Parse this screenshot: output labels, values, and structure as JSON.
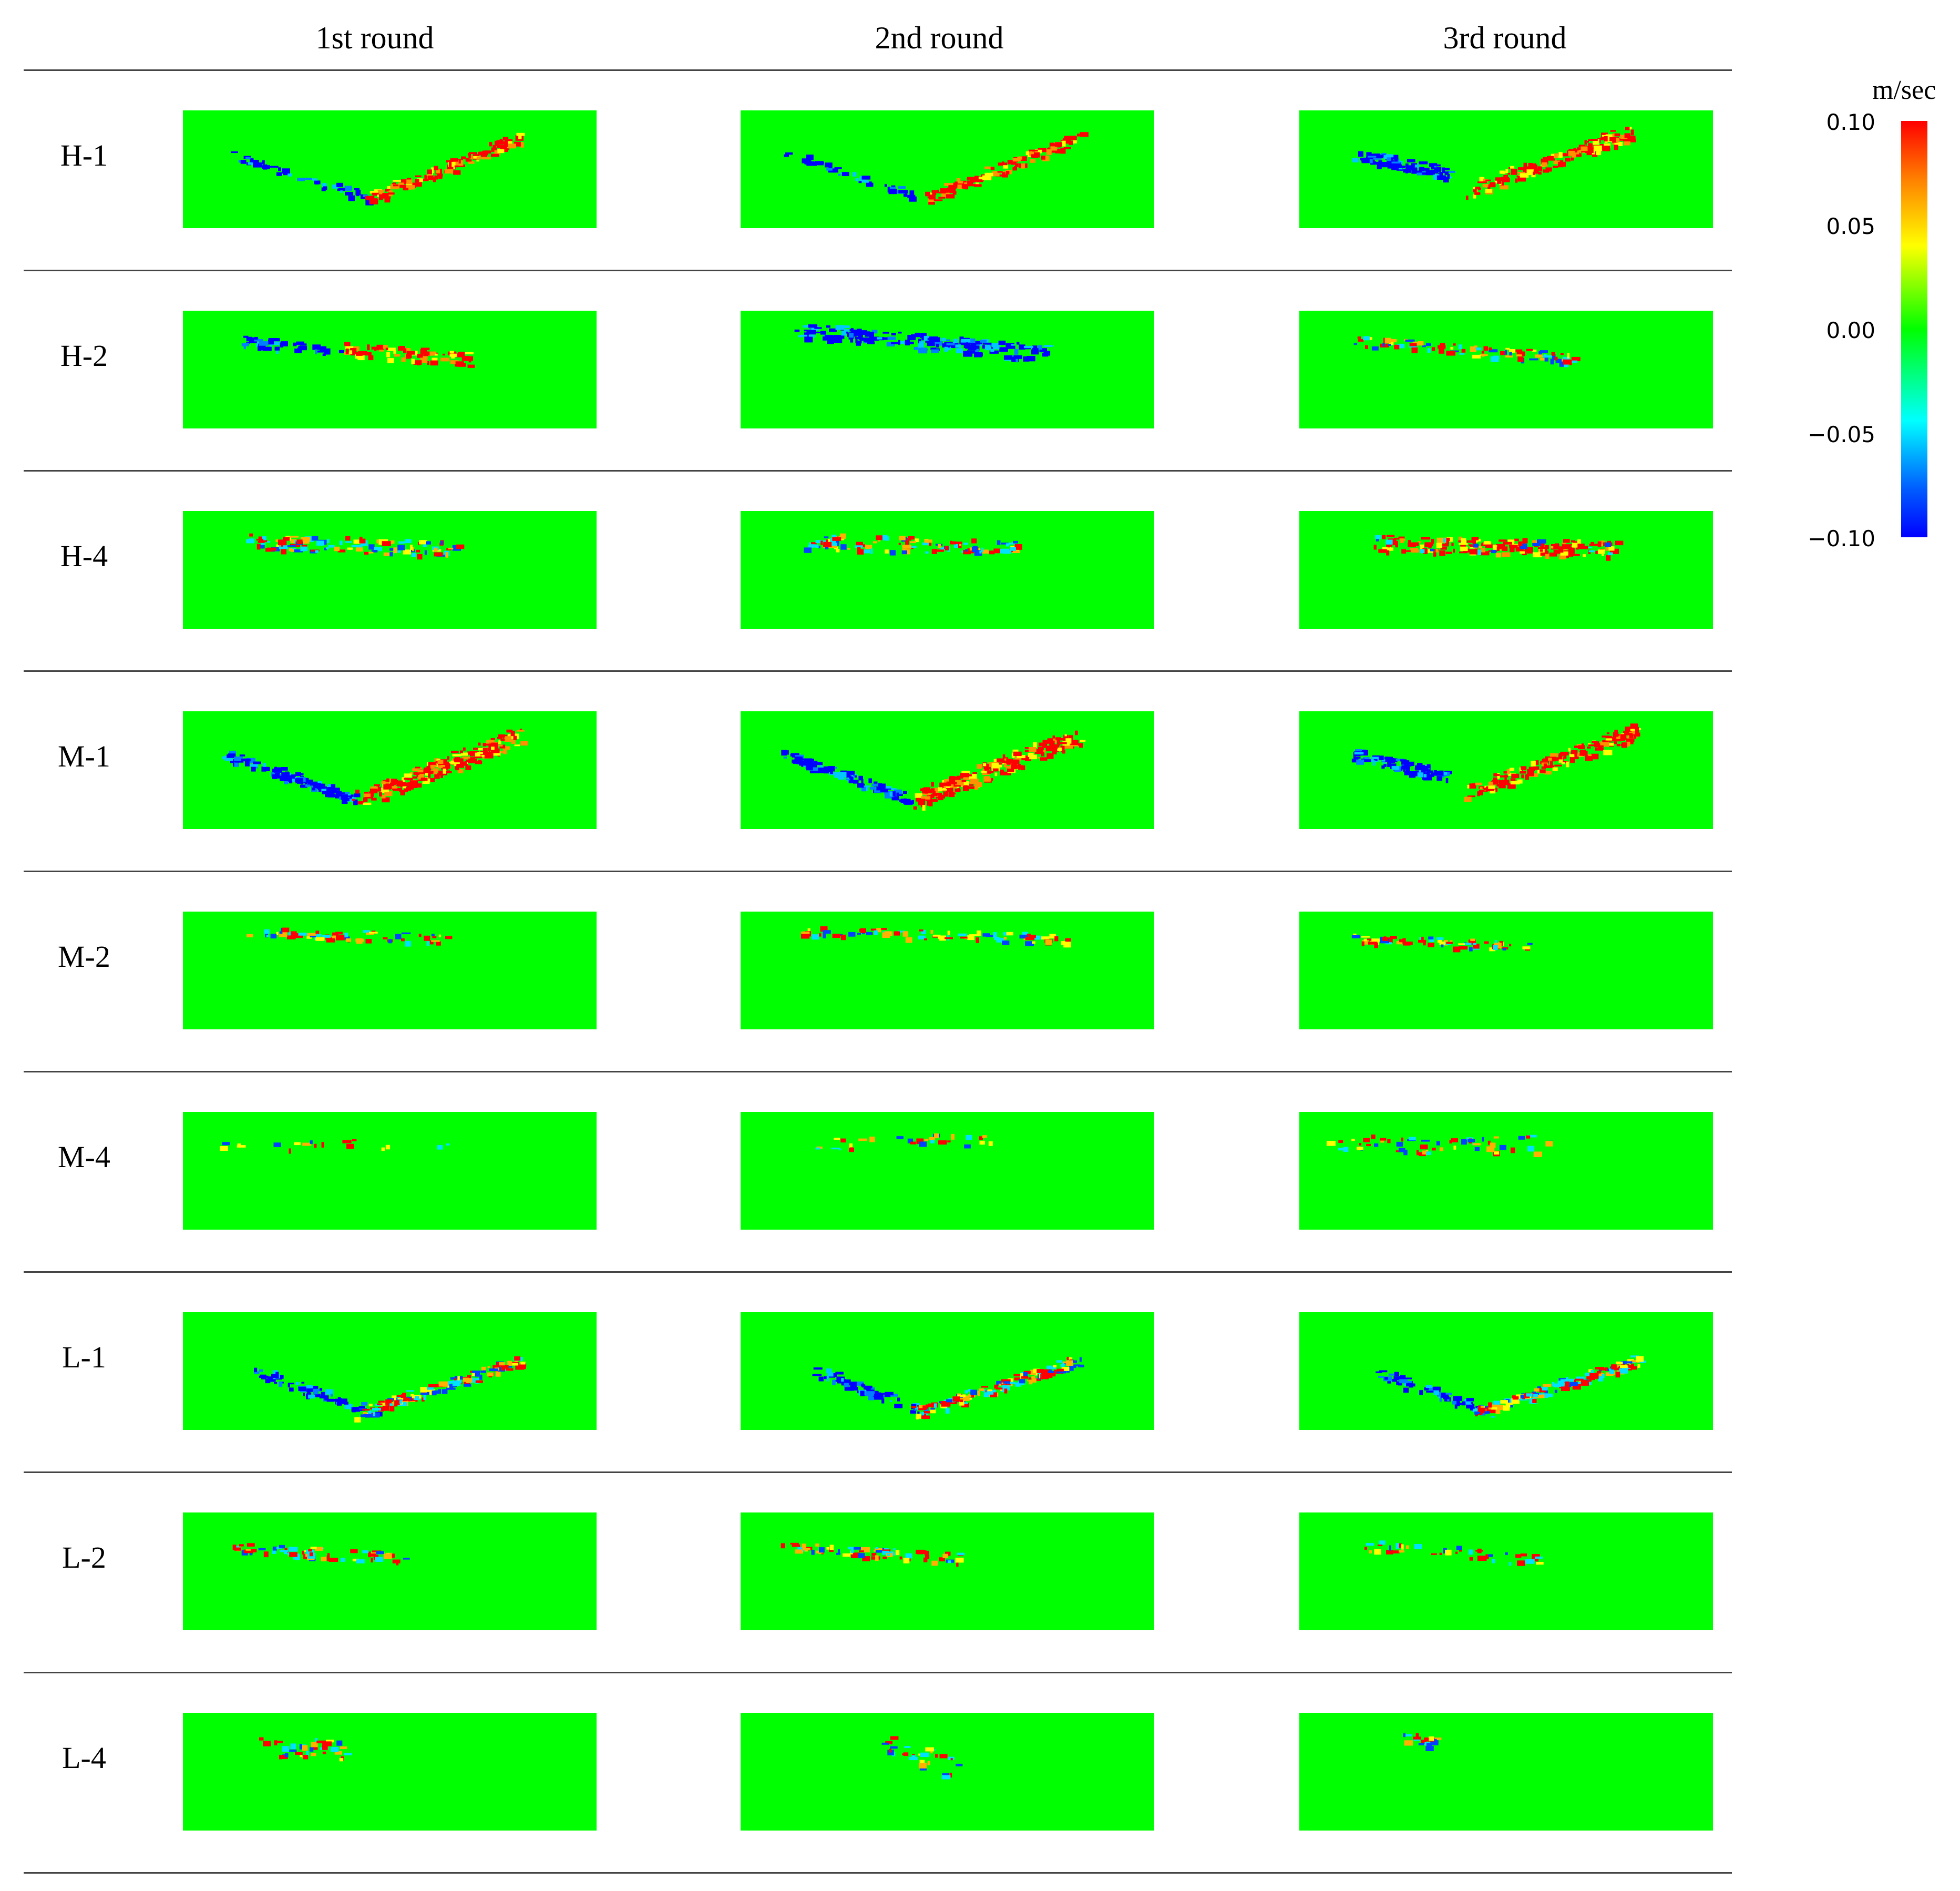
{
  "column_headers": [
    "1st round",
    "2nd round",
    "3rd round"
  ],
  "row_labels": [
    "H-1",
    "H-2",
    "H-4",
    "M-1",
    "M-2",
    "M-4",
    "L-1",
    "L-2",
    "L-4"
  ],
  "colorbar": {
    "unit": "m/sec",
    "ticks": [
      "0.10",
      "0.05",
      "0.00",
      "−0.05",
      "−0.10"
    ],
    "colors": [
      "#ff0000",
      "#ffff00",
      "#00ff00",
      "#00ffff",
      "#0000ff"
    ]
  },
  "colors": {
    "background_field": "#00ff00",
    "positive": "#ff0000",
    "negative": "#0000ff"
  }
}
